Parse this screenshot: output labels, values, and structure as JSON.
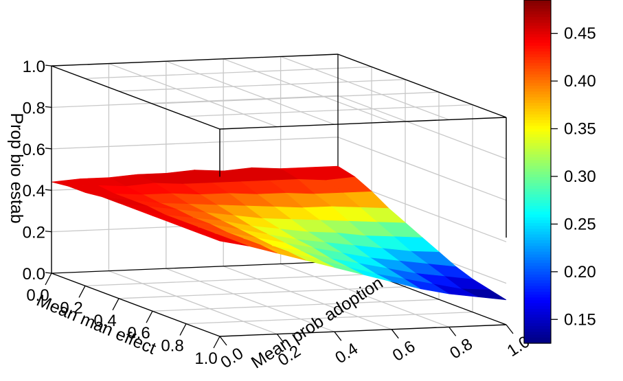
{
  "chart_data": {
    "type": "surface3d",
    "x_axis": {
      "label": "Mean man effect",
      "ticks": [
        "0.0",
        "0.2",
        "0.4",
        "0.6",
        "0.8",
        "1.0"
      ],
      "range": [
        0,
        1
      ]
    },
    "y_axis": {
      "label": "Mean prob adoption",
      "ticks": [
        "0.0",
        "0.2",
        "0.4",
        "0.6",
        "0.8",
        "1.0"
      ],
      "range": [
        0,
        1
      ]
    },
    "z_axis": {
      "label": "Prop bio estab",
      "ticks": [
        "0.0",
        "0.2",
        "0.4",
        "0.6",
        "0.8",
        "1.0"
      ],
      "range": [
        0,
        1
      ]
    },
    "grid": true,
    "grid_x": [
      0,
      0.1,
      0.2,
      0.3,
      0.4,
      0.5,
      0.6,
      0.7,
      0.8,
      0.9,
      1.0
    ],
    "grid_y": [
      0,
      0.1,
      0.2,
      0.3,
      0.4,
      0.5,
      0.6,
      0.7,
      0.8,
      0.9,
      1.0
    ],
    "z_values": [
      [
        0.44,
        0.45,
        0.45,
        0.46,
        0.46,
        0.47,
        0.46,
        0.47,
        0.46,
        0.46,
        0.46
      ],
      [
        0.45,
        0.45,
        0.44,
        0.45,
        0.44,
        0.44,
        0.44,
        0.44,
        0.44,
        0.43,
        0.44
      ],
      [
        0.45,
        0.44,
        0.43,
        0.43,
        0.42,
        0.42,
        0.41,
        0.41,
        0.4,
        0.4,
        0.4
      ],
      [
        0.46,
        0.44,
        0.42,
        0.41,
        0.4,
        0.39,
        0.38,
        0.37,
        0.37,
        0.36,
        0.35
      ],
      [
        0.46,
        0.44,
        0.42,
        0.4,
        0.38,
        0.36,
        0.35,
        0.34,
        0.33,
        0.32,
        0.31
      ],
      [
        0.46,
        0.43,
        0.41,
        0.39,
        0.36,
        0.34,
        0.32,
        0.31,
        0.29,
        0.28,
        0.27
      ],
      [
        0.46,
        0.43,
        0.41,
        0.38,
        0.35,
        0.32,
        0.3,
        0.28,
        0.26,
        0.24,
        0.23
      ],
      [
        0.46,
        0.43,
        0.4,
        0.37,
        0.34,
        0.31,
        0.28,
        0.25,
        0.23,
        0.21,
        0.19
      ],
      [
        0.46,
        0.43,
        0.4,
        0.36,
        0.33,
        0.29,
        0.26,
        0.23,
        0.2,
        0.18,
        0.16
      ],
      [
        0.46,
        0.43,
        0.4,
        0.36,
        0.32,
        0.28,
        0.24,
        0.21,
        0.18,
        0.15,
        0.14
      ],
      [
        0.46,
        0.43,
        0.39,
        0.35,
        0.31,
        0.27,
        0.23,
        0.19,
        0.16,
        0.14,
        0.12
      ]
    ],
    "colorbar": {
      "range": [
        0.125,
        0.485
      ],
      "ticks": [
        "0.15",
        "0.20",
        "0.25",
        "0.30",
        "0.35",
        "0.40",
        "0.45"
      ],
      "colormap": "jet"
    }
  }
}
